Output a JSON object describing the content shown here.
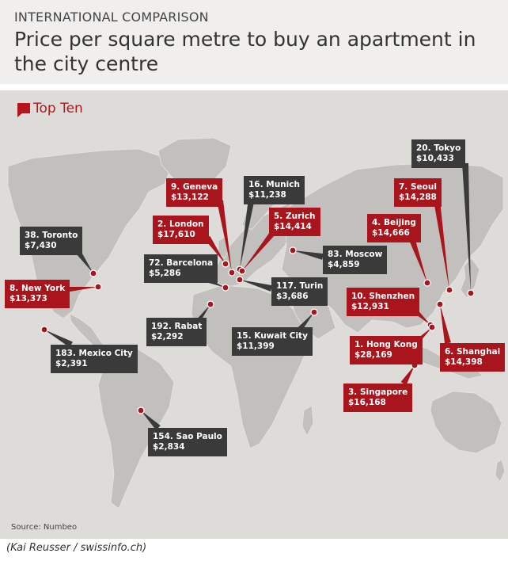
{
  "header": {
    "supertitle": "INTERNATIONAL COMPARISON",
    "title": "Price per square metre to buy an apartment in the city centre"
  },
  "legend": {
    "label": "Top Ten",
    "icon": "speech-bubble-icon",
    "color": "#b5151e"
  },
  "colors": {
    "top_ten": "#a8151c",
    "other": "#3a3a3a",
    "land": "#c2c0bd",
    "ocean": "#dedcd9"
  },
  "cities": [
    {
      "id": "tokyo",
      "name": "20. Tokyo",
      "price": "$10,433",
      "top": false
    },
    {
      "id": "geneva",
      "name": "9. Geneva",
      "price": "$13,122",
      "top": true
    },
    {
      "id": "munich",
      "name": "16. Munich",
      "price": "$11,238",
      "top": false
    },
    {
      "id": "seoul",
      "name": "7. Seoul",
      "price": "$14,288",
      "top": true
    },
    {
      "id": "london",
      "name": "2. London",
      "price": "$17,610",
      "top": true
    },
    {
      "id": "zurich",
      "name": "5. Zurich",
      "price": "$14,414",
      "top": true
    },
    {
      "id": "beijing",
      "name": "4. Beijing",
      "price": "$14,666",
      "top": true
    },
    {
      "id": "toronto",
      "name": "38. Toronto",
      "price": "$7,430",
      "top": false
    },
    {
      "id": "barcelona",
      "name": "72. Barcelona",
      "price": "$5,286",
      "top": false
    },
    {
      "id": "moscow",
      "name": "83. Moscow",
      "price": "$4,859",
      "top": false
    },
    {
      "id": "newyork",
      "name": "8. New York",
      "price": "$13,373",
      "top": true
    },
    {
      "id": "turin",
      "name": "117. Turin",
      "price": "$3,686",
      "top": false
    },
    {
      "id": "shenzhen",
      "name": "10. Shenzhen",
      "price": "$12,931",
      "top": true
    },
    {
      "id": "rabat",
      "name": "192. Rabat",
      "price": "$2,292",
      "top": false
    },
    {
      "id": "kuwait",
      "name": "15. Kuwait City",
      "price": "$11,399",
      "top": false
    },
    {
      "id": "hongkong",
      "name": "1. Hong Kong",
      "price": "$28,169",
      "top": true
    },
    {
      "id": "mexico",
      "name": "183. Mexico City",
      "price": "$2,391",
      "top": false
    },
    {
      "id": "shanghai",
      "name": "6. Shanghai",
      "price": "$14,398",
      "top": true
    },
    {
      "id": "singapore",
      "name": "3. Singapore",
      "price": "$16,168",
      "top": true
    },
    {
      "id": "saopaulo",
      "name": "154. Sao Paulo",
      "price": "$2,834",
      "top": false
    }
  ],
  "footer": {
    "source": "Source: Numbeo",
    "credit": "(Kai Reusser / swissinfo.ch)"
  }
}
